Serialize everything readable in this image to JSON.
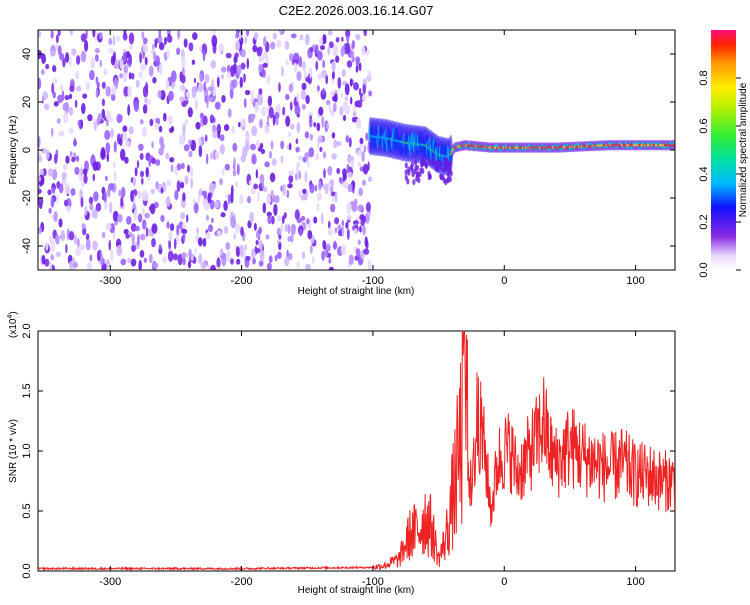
{
  "chart_data": [
    {
      "type": "heatmap",
      "title": "C2E2.2026.003.16.14.G07",
      "xlabel": "Height of straight line (km)",
      "ylabel": "Frequency (Hz)",
      "xlim": [
        -355,
        130
      ],
      "ylim": [
        -50,
        50
      ],
      "xticks": [
        -300,
        -200,
        -100,
        0,
        100
      ],
      "yticks": [
        -40,
        -20,
        0,
        20,
        40
      ],
      "colorbar": {
        "label": "Normalized spectral amplitude",
        "range": [
          0,
          1
        ],
        "ticks": [
          "0.0",
          "0.2",
          "0.4",
          "0.6",
          "0.8"
        ]
      },
      "regions": [
        {
          "name": "noise",
          "x_range": [
            -355,
            -102
          ],
          "freq_range": [
            -50,
            50
          ],
          "amplitude": "0.0-0.2"
        },
        {
          "name": "trace",
          "x_range": [
            -102,
            130
          ],
          "frequency_track": [
            [
              -105,
              6
            ],
            [
              -90,
              5
            ],
            [
              -75,
              3
            ],
            [
              -60,
              2
            ],
            [
              -50,
              -2
            ],
            [
              -42,
              -3
            ],
            [
              -38,
              1
            ],
            [
              -30,
              2
            ],
            [
              -10,
              1
            ],
            [
              10,
              1
            ],
            [
              40,
              1
            ],
            [
              80,
              2
            ],
            [
              130,
              2
            ]
          ],
          "amplitude": "0.2-1.0"
        }
      ]
    },
    {
      "type": "line",
      "xlabel": "Height of straight line (km)",
      "ylabel": "SNR (10 * v/v)",
      "y_scale_label": "(x10",
      "y_scale_exp": "4",
      "y_scale_close": ")",
      "xlim": [
        -355,
        130
      ],
      "ylim": [
        0,
        20000
      ],
      "xticks": [
        -300,
        -200,
        -100,
        0,
        100
      ],
      "yticks": [
        "0.0",
        "0.5",
        "1.0",
        "1.5",
        "2.0"
      ],
      "series_color": "#ee2222",
      "series": [
        {
          "name": "SNR",
          "x": [
            -355,
            -200,
            -100,
            -90,
            -80,
            -72,
            -65,
            -60,
            -55,
            -50,
            -45,
            -40,
            -35,
            -30,
            -25,
            -20,
            -15,
            -10,
            -5,
            0,
            5,
            10,
            15,
            20,
            25,
            30,
            35,
            40,
            50,
            60,
            70,
            80,
            90,
            100,
            110,
            120,
            130
          ],
          "y": [
            200,
            200,
            300,
            500,
            1000,
            3000,
            3500,
            4500,
            3500,
            1000,
            2500,
            5500,
            9000,
            14000,
            6000,
            13000,
            10000,
            5000,
            9000,
            10000,
            10000,
            8000,
            9000,
            10000,
            11000,
            12500,
            10000,
            9000,
            10500,
            9500,
            9000,
            8500,
            9000,
            8000,
            8000,
            7500,
            7500
          ]
        }
      ]
    }
  ]
}
